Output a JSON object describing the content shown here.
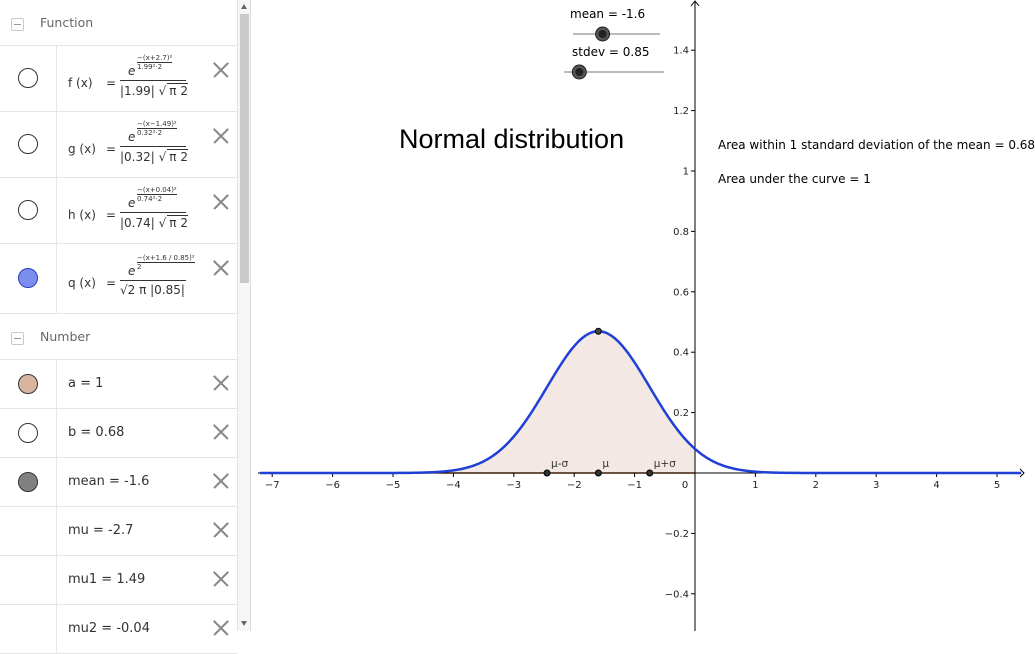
{
  "algebra": {
    "groups": {
      "function": "Function",
      "number": "Number"
    },
    "functions": [
      {
        "label": "f (x)",
        "eq": "=",
        "exp_num": "(x+2.7)²",
        "exp_den": "1.99²·2",
        "den": "|1.99|",
        "sqrt": "π 2",
        "marble": "empty"
      },
      {
        "label": "g (x)",
        "eq": "=",
        "exp_num": "(x−1.49)²",
        "exp_den": "0.32²·2",
        "den": "|0.32|",
        "sqrt": "π 2",
        "marble": "empty"
      },
      {
        "label": "h (x)",
        "eq": "=",
        "exp_num": "(x+0.04)²",
        "exp_den": "0.74²·2",
        "den": "|0.74|",
        "sqrt": "π 2",
        "marble": "empty"
      },
      {
        "label": "q (x)",
        "eq": "=",
        "exp_num": "(x+1.6 / 0.85)²",
        "exp_den": "2",
        "den": "√2 π  |0.85|",
        "sqrt": "",
        "marble": "filled"
      }
    ],
    "numbers": [
      {
        "text": "a = 1",
        "marble": "#d9b5a0"
      },
      {
        "text": "b = 0.68",
        "marble": "#ffffff"
      },
      {
        "text": "mean = -1.6",
        "marble": "#808080"
      },
      {
        "text": "mu = -2.7",
        "marble": ""
      },
      {
        "text": "mu1 = 1.49",
        "marble": ""
      },
      {
        "text": "mu2 = -0.04",
        "marble": ""
      }
    ]
  },
  "graphics": {
    "title": "Normal distribution",
    "area_one_sd": "Area within 1 standard deviation of the mean = 0.68",
    "area_total": "Area under the curve = 1",
    "sliders": {
      "mean": {
        "label": "mean = -1.6",
        "value": -1.6,
        "min": -5,
        "max": 5
      },
      "stdev": {
        "label": "stdev = 0.85",
        "value": 0.85,
        "min": 0.1,
        "max": 5
      }
    },
    "point_labels": {
      "mu_minus_sigma": "μ-σ",
      "mu": "μ",
      "mu_plus_sigma": "μ+σ"
    },
    "colors": {
      "curve": "#1f3fd6",
      "fill": "#f3e8e3",
      "axis": "#000000",
      "baseline": "#c05a1a"
    }
  },
  "chart_data": {
    "type": "area",
    "function": "q(x) = exp(-((x - mean)/stdev)^2 / 2) / (sqrt(2π)·|stdev|)",
    "mean": -1.6,
    "stdev": 0.85,
    "peak": 0.47,
    "x_ticks": [
      -7,
      -6,
      -5,
      -4,
      -3,
      -2,
      -1,
      0,
      1,
      2,
      3,
      4,
      5
    ],
    "y_ticks": [
      -0.4,
      -0.2,
      0.2,
      0.4,
      0.6,
      0.8,
      1,
      1.2,
      1.4
    ],
    "x_tick_labels": [
      "−7",
      "−6",
      "−5",
      "−4",
      "−3",
      "−2",
      "−1",
      "0",
      "1",
      "2",
      "3",
      "4",
      "5"
    ],
    "y_tick_labels": [
      "−0.4",
      "−0.2",
      "0.2",
      "0.4",
      "0.6",
      "0.8",
      "1",
      "1.2",
      "1.4"
    ],
    "xlim": [
      -7.2,
      5.4
    ],
    "ylim": [
      -0.45,
      1.55
    ],
    "grid": false
  }
}
